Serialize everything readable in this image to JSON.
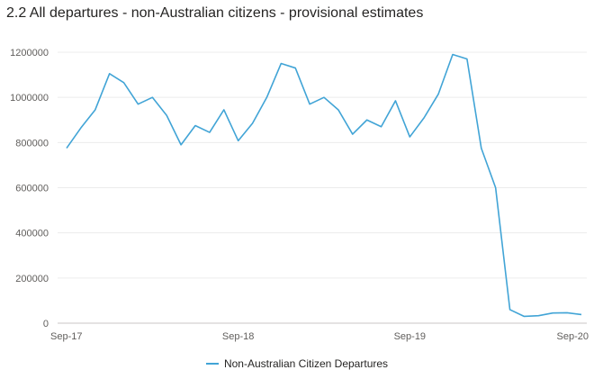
{
  "chart_data": {
    "type": "line",
    "title": "2.2 All departures - non-Australian citizens - provisional estimates",
    "xlabel": "",
    "ylabel": "",
    "ylim": [
      0,
      1200000
    ],
    "y_ticks": [
      0,
      200000,
      400000,
      600000,
      800000,
      1000000,
      1200000
    ],
    "y_tick_labels": [
      "0",
      "200000",
      "400000",
      "600000",
      "800000",
      "1000000",
      "1200000"
    ],
    "x_tick_labels": [
      "Sep-17",
      "Sep-18",
      "Sep-19",
      "Sep-20"
    ],
    "x_tick_indices": [
      0,
      12,
      24,
      36
    ],
    "grid": true,
    "legend_position": "bottom-center",
    "line_color": "#41a4d6",
    "series": [
      {
        "name": "Non-Australian Citizen Departures",
        "x": [
          "Sep-17",
          "Oct-17",
          "Nov-17",
          "Dec-17",
          "Jan-18",
          "Feb-18",
          "Mar-18",
          "Apr-18",
          "May-18",
          "Jun-18",
          "Jul-18",
          "Aug-18",
          "Sep-18",
          "Oct-18",
          "Nov-18",
          "Dec-18",
          "Jan-19",
          "Feb-19",
          "Mar-19",
          "Apr-19",
          "May-19",
          "Jun-19",
          "Jul-19",
          "Aug-19",
          "Sep-19",
          "Oct-19",
          "Nov-19",
          "Dec-19",
          "Jan-20",
          "Feb-20",
          "Mar-20",
          "Apr-20",
          "May-20",
          "Jun-20",
          "Jul-20",
          "Aug-20",
          "Sep-20"
        ],
        "values": [
          775000,
          865000,
          945000,
          1105000,
          1065000,
          970000,
          1000000,
          920000,
          790000,
          875000,
          845000,
          945000,
          808000,
          885000,
          1000000,
          1150000,
          1130000,
          970000,
          1000000,
          945000,
          837000,
          900000,
          870000,
          985000,
          825000,
          910000,
          1015000,
          1190000,
          1170000,
          775000,
          600000,
          60000,
          30000,
          33000,
          45000,
          46000,
          38000
        ]
      }
    ]
  }
}
